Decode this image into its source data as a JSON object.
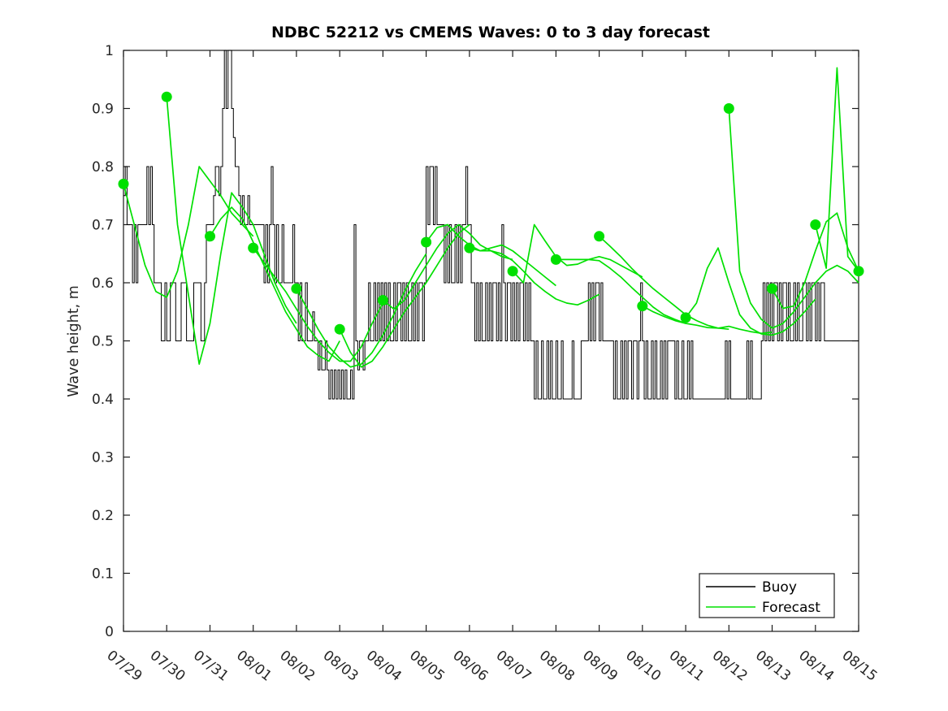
{
  "title": "NDBC 52212 vs CMEMS Waves: 0 to 3 day forecast",
  "chart_data": {
    "type": "line",
    "title": "NDBC 52212 vs CMEMS Waves: 0 to 3 day forecast",
    "xlabel": "",
    "ylabel": "Wave height, m",
    "ylim": [
      0,
      1
    ],
    "y_ticks": [
      0,
      0.1,
      0.2,
      0.3,
      0.4,
      0.5,
      0.6,
      0.7,
      0.8,
      0.9,
      1
    ],
    "y_tick_labels": [
      "0",
      "0.1",
      "0.2",
      "0.3",
      "0.4",
      "0.5",
      "0.6",
      "0.7",
      "0.8",
      "0.9",
      "1"
    ],
    "x_tick_labels": [
      "07/29",
      "07/30",
      "07/31",
      "08/01",
      "08/02",
      "08/03",
      "08/04",
      "08/05",
      "08/06",
      "08/07",
      "08/08",
      "08/09",
      "08/10",
      "08/11",
      "08/12",
      "08/13",
      "08/14",
      "08/15"
    ],
    "grid": false,
    "legend": {
      "position": "south-east",
      "entries": [
        {
          "label": "Buoy",
          "color": "#000000"
        },
        {
          "label": "Forecast",
          "color": "#00E000"
        }
      ]
    },
    "series": {
      "buoy": {
        "name": "Buoy",
        "color": "#000000",
        "style": "step",
        "interval_hours": 1,
        "units": "m",
        "days": [
          {
            "date": "07/29",
            "hourly": [
              0.75,
              0.8,
              0.7,
              0.7,
              0.7,
              0.6,
              0.7,
              0.6,
              0.7,
              0.7,
              0.7,
              0.7,
              0.7,
              0.8,
              0.7,
              0.8,
              0.7,
              0.6,
              0.6,
              0.6,
              0.6,
              0.5,
              0.5,
              0.6
            ]
          },
          {
            "date": "07/30",
            "hourly": [
              0.5,
              0.5,
              0.6,
              0.6,
              0.6,
              0.5,
              0.5,
              0.5,
              0.6,
              0.6,
              0.6,
              0.5,
              0.5,
              0.5,
              0.5,
              0.6,
              0.6,
              0.6,
              0.6,
              0.5,
              0.5,
              0.6,
              0.7,
              0.7
            ]
          },
          {
            "date": "07/31",
            "hourly": [
              0.7,
              0.7,
              0.75,
              0.8,
              0.8,
              0.75,
              0.8,
              0.9,
              1.0,
              0.9,
              1.0,
              1.0,
              0.9,
              0.85,
              0.8,
              0.8,
              0.75,
              0.7,
              0.75,
              0.7,
              0.7,
              0.75,
              0.7,
              0.7
            ]
          },
          {
            "date": "08/01",
            "hourly": [
              0.7,
              0.7,
              0.7,
              0.7,
              0.7,
              0.7,
              0.6,
              0.7,
              0.6,
              0.7,
              0.8,
              0.7,
              0.6,
              0.7,
              0.6,
              0.6,
              0.7,
              0.6,
              0.6,
              0.6,
              0.6,
              0.6,
              0.7,
              0.6
            ]
          },
          {
            "date": "08/02",
            "hourly": [
              0.6,
              0.5,
              0.6,
              0.5,
              0.5,
              0.6,
              0.5,
              0.5,
              0.5,
              0.55,
              0.5,
              0.5,
              0.45,
              0.5,
              0.45,
              0.45,
              0.5,
              0.45,
              0.4,
              0.45,
              0.4,
              0.45,
              0.4,
              0.45
            ]
          },
          {
            "date": "08/03",
            "hourly": [
              0.4,
              0.45,
              0.4,
              0.45,
              0.4,
              0.4,
              0.45,
              0.4,
              0.7,
              0.5,
              0.45,
              0.5,
              0.5,
              0.45,
              0.5,
              0.5,
              0.6,
              0.5,
              0.5,
              0.6,
              0.5,
              0.6,
              0.5,
              0.6
            ]
          },
          {
            "date": "08/04",
            "hourly": [
              0.5,
              0.6,
              0.5,
              0.6,
              0.5,
              0.5,
              0.6,
              0.5,
              0.6,
              0.6,
              0.5,
              0.6,
              0.5,
              0.6,
              0.5,
              0.5,
              0.6,
              0.5,
              0.6,
              0.5,
              0.6,
              0.6,
              0.5,
              0.6
            ]
          },
          {
            "date": "08/05",
            "hourly": [
              0.8,
              0.7,
              0.8,
              0.8,
              0.7,
              0.8,
              0.7,
              0.7,
              0.7,
              0.7,
              0.6,
              0.7,
              0.6,
              0.7,
              0.6,
              0.6,
              0.7,
              0.6,
              0.7,
              0.6,
              0.7,
              0.7,
              0.8,
              0.7
            ]
          },
          {
            "date": "08/06",
            "hourly": [
              0.7,
              0.6,
              0.6,
              0.5,
              0.6,
              0.5,
              0.6,
              0.5,
              0.5,
              0.6,
              0.5,
              0.6,
              0.5,
              0.6,
              0.6,
              0.5,
              0.6,
              0.5,
              0.7,
              0.6,
              0.5,
              0.6,
              0.6,
              0.5
            ]
          },
          {
            "date": "08/07",
            "hourly": [
              0.6,
              0.5,
              0.6,
              0.5,
              0.6,
              0.6,
              0.5,
              0.6,
              0.5,
              0.6,
              0.5,
              0.5,
              0.4,
              0.5,
              0.4,
              0.4,
              0.5,
              0.4,
              0.4,
              0.5,
              0.4,
              0.5,
              0.4,
              0.4
            ]
          },
          {
            "date": "08/08",
            "hourly": [
              0.5,
              0.4,
              0.4,
              0.5,
              0.4,
              0.4,
              0.4,
              0.4,
              0.4,
              0.5,
              0.4,
              0.4,
              0.4,
              0.4,
              0.5,
              0.5,
              0.5,
              0.5,
              0.6,
              0.5,
              0.6,
              0.5,
              0.6,
              0.6
            ]
          },
          {
            "date": "08/09",
            "hourly": [
              0.5,
              0.6,
              0.5,
              0.5,
              0.5,
              0.5,
              0.5,
              0.5,
              0.4,
              0.5,
              0.4,
              0.4,
              0.5,
              0.4,
              0.5,
              0.4,
              0.5,
              0.5,
              0.4,
              0.5,
              0.5,
              0.4,
              0.5,
              0.6
            ]
          },
          {
            "date": "08/10",
            "hourly": [
              0.5,
              0.4,
              0.5,
              0.4,
              0.4,
              0.5,
              0.4,
              0.5,
              0.4,
              0.4,
              0.5,
              0.4,
              0.5,
              0.4,
              0.5,
              0.5,
              0.5,
              0.5,
              0.4,
              0.5,
              0.4,
              0.4,
              0.5,
              0.4
            ]
          },
          {
            "date": "08/11",
            "hourly": [
              0.4,
              0.5,
              0.4,
              0.5,
              0.4,
              0.4,
              0.4,
              0.4,
              0.4,
              0.4,
              0.4,
              0.4,
              0.4,
              0.4,
              0.4,
              0.4,
              0.4,
              0.4,
              0.4,
              0.4,
              0.4,
              0.4,
              0.5,
              0.4
            ]
          },
          {
            "date": "08/12",
            "hourly": [
              0.5,
              0.4,
              0.4,
              0.4,
              0.4,
              0.4,
              0.4,
              0.4,
              0.4,
              0.4,
              0.5,
              0.4,
              0.5,
              0.4,
              0.4,
              0.4,
              0.4,
              0.4,
              0.5,
              0.6,
              0.5,
              0.6,
              0.5,
              0.6
            ]
          },
          {
            "date": "08/13",
            "hourly": [
              0.5,
              0.6,
              0.6,
              0.5,
              0.6,
              0.5,
              0.6,
              0.6,
              0.5,
              0.6,
              0.5,
              0.5,
              0.6,
              0.5,
              0.6,
              0.5,
              0.5,
              0.6,
              0.6,
              0.5,
              0.6,
              0.5,
              0.6,
              0.6
            ]
          },
          {
            "date": "08/14",
            "hourly": [
              0.5,
              0.6,
              0.5,
              0.6,
              0.6,
              0.5,
              0.5,
              0.5,
              0.5,
              0.5,
              0.5,
              0.5,
              0.5,
              0.5,
              0.5,
              0.5,
              0.5,
              0.5,
              0.5,
              0.5,
              0.5,
              0.5,
              0.5,
              0.5
            ]
          },
          {
            "date": "08/15",
            "hourly": [
              0.5
            ]
          }
        ]
      },
      "forecast": {
        "name": "Forecast",
        "color": "#00E000",
        "style": "line",
        "interval_hours": 6,
        "marker_at_start": true,
        "units": "m",
        "runs": [
          {
            "start": "07/29",
            "start_value": 0.77,
            "values": [
              0.77,
              0.7,
              0.63,
              0.585,
              0.575,
              0.62,
              0.7,
              0.8,
              0.775,
              0.75,
              0.72,
              0.7,
              0.68
            ]
          },
          {
            "start": "07/30",
            "start_value": 0.92,
            "values": [
              0.92,
              0.7,
              0.58,
              0.46,
              0.53,
              0.65,
              0.755,
              0.73,
              0.7,
              0.65,
              0.6,
              0.56,
              0.53
            ]
          },
          {
            "start": "07/31",
            "start_value": 0.68,
            "values": [
              0.68,
              0.71,
              0.73,
              0.71,
              0.67,
              0.63,
              0.59,
              0.55,
              0.52,
              0.49,
              0.475,
              0.465,
              0.5
            ]
          },
          {
            "start": "08/01",
            "start_value": 0.66,
            "values": [
              0.66,
              0.635,
              0.61,
              0.585,
              0.555,
              0.525,
              0.5,
              0.48,
              0.465,
              0.465,
              0.49,
              0.53,
              0.565
            ]
          },
          {
            "start": "08/02",
            "start_value": 0.59,
            "values": [
              0.59,
              0.555,
              0.52,
              0.49,
              0.47,
              0.455,
              0.46,
              0.48,
              0.51,
              0.545,
              0.585,
              0.62,
              0.65
            ]
          },
          {
            "start": "08/03",
            "start_value": 0.52,
            "values": [
              0.52,
              0.48,
              0.455,
              0.465,
              0.49,
              0.52,
              0.55,
              0.575,
              0.6,
              0.63,
              0.66,
              0.685,
              0.7
            ]
          },
          {
            "start": "08/04",
            "start_value": 0.57,
            "values": [
              0.57,
              0.555,
              0.57,
              0.6,
              0.63,
              0.66,
              0.685,
              0.7,
              0.685,
              0.665,
              0.655,
              0.645,
              0.64
            ]
          },
          {
            "start": "08/05",
            "start_value": 0.67,
            "values": [
              0.67,
              0.695,
              0.7,
              0.68,
              0.665,
              0.655,
              0.66,
              0.665,
              0.655,
              0.64,
              0.625,
              0.61,
              0.595
            ]
          },
          {
            "start": "08/06",
            "start_value": 0.66,
            "values": [
              0.66,
              0.655,
              0.655,
              0.65,
              0.638,
              0.62,
              0.6,
              0.585,
              0.572,
              0.565,
              0.562,
              0.57,
              0.58
            ]
          },
          {
            "start": "08/07",
            "start_value": 0.62,
            "values": [
              0.62,
              0.6,
              0.7,
              0.672,
              0.645,
              0.63,
              0.632,
              0.64,
              0.645,
              0.64,
              0.63,
              0.62,
              0.61
            ]
          },
          {
            "start": "08/08",
            "start_value": 0.64,
            "values": [
              0.64,
              0.64,
              0.64,
              0.64,
              0.638,
              0.625,
              0.61,
              0.592,
              0.575,
              0.558,
              0.545,
              0.537,
              0.53
            ]
          },
          {
            "start": "08/09",
            "start_value": 0.68,
            "values": [
              0.68,
              0.663,
              0.645,
              0.625,
              0.607,
              0.59,
              0.575,
              0.56,
              0.545,
              0.535,
              0.527,
              0.522,
              0.52
            ]
          },
          {
            "start": "08/10",
            "start_value": 0.56,
            "values": [
              0.56,
              0.55,
              0.542,
              0.535,
              0.53,
              0.527,
              0.523,
              0.522,
              0.525,
              0.52,
              0.516,
              0.513,
              0.515
            ]
          },
          {
            "start": "08/11",
            "start_value": 0.54,
            "values": [
              0.54,
              0.565,
              0.625,
              0.66,
              0.6,
              0.545,
              0.522,
              0.512,
              0.51,
              0.516,
              0.53,
              0.55,
              0.572
            ]
          },
          {
            "start": "08/12",
            "start_value": 0.9,
            "values": [
              0.9,
              0.62,
              0.565,
              0.537,
              0.522,
              0.53,
              0.55,
              0.575,
              0.6,
              0.62,
              0.63,
              0.62,
              0.6
            ]
          },
          {
            "start": "08/13",
            "start_value": 0.59,
            "values": [
              0.59,
              0.556,
              0.56,
              0.6,
              0.655,
              0.705,
              0.72,
              0.66,
              0.62
            ]
          },
          {
            "start": "08/14",
            "start_value": 0.7,
            "values": [
              0.7,
              0.625,
              0.97,
              0.645,
              0.62
            ]
          },
          {
            "start": "08/15",
            "start_value": 0.62,
            "values": [
              0.62
            ]
          }
        ]
      }
    }
  },
  "colors": {
    "background": "#ffffff",
    "axis": "#1a1a1a",
    "axis_text": "#262626",
    "buoy_line": "#000000",
    "forecast_line": "#00E000"
  }
}
